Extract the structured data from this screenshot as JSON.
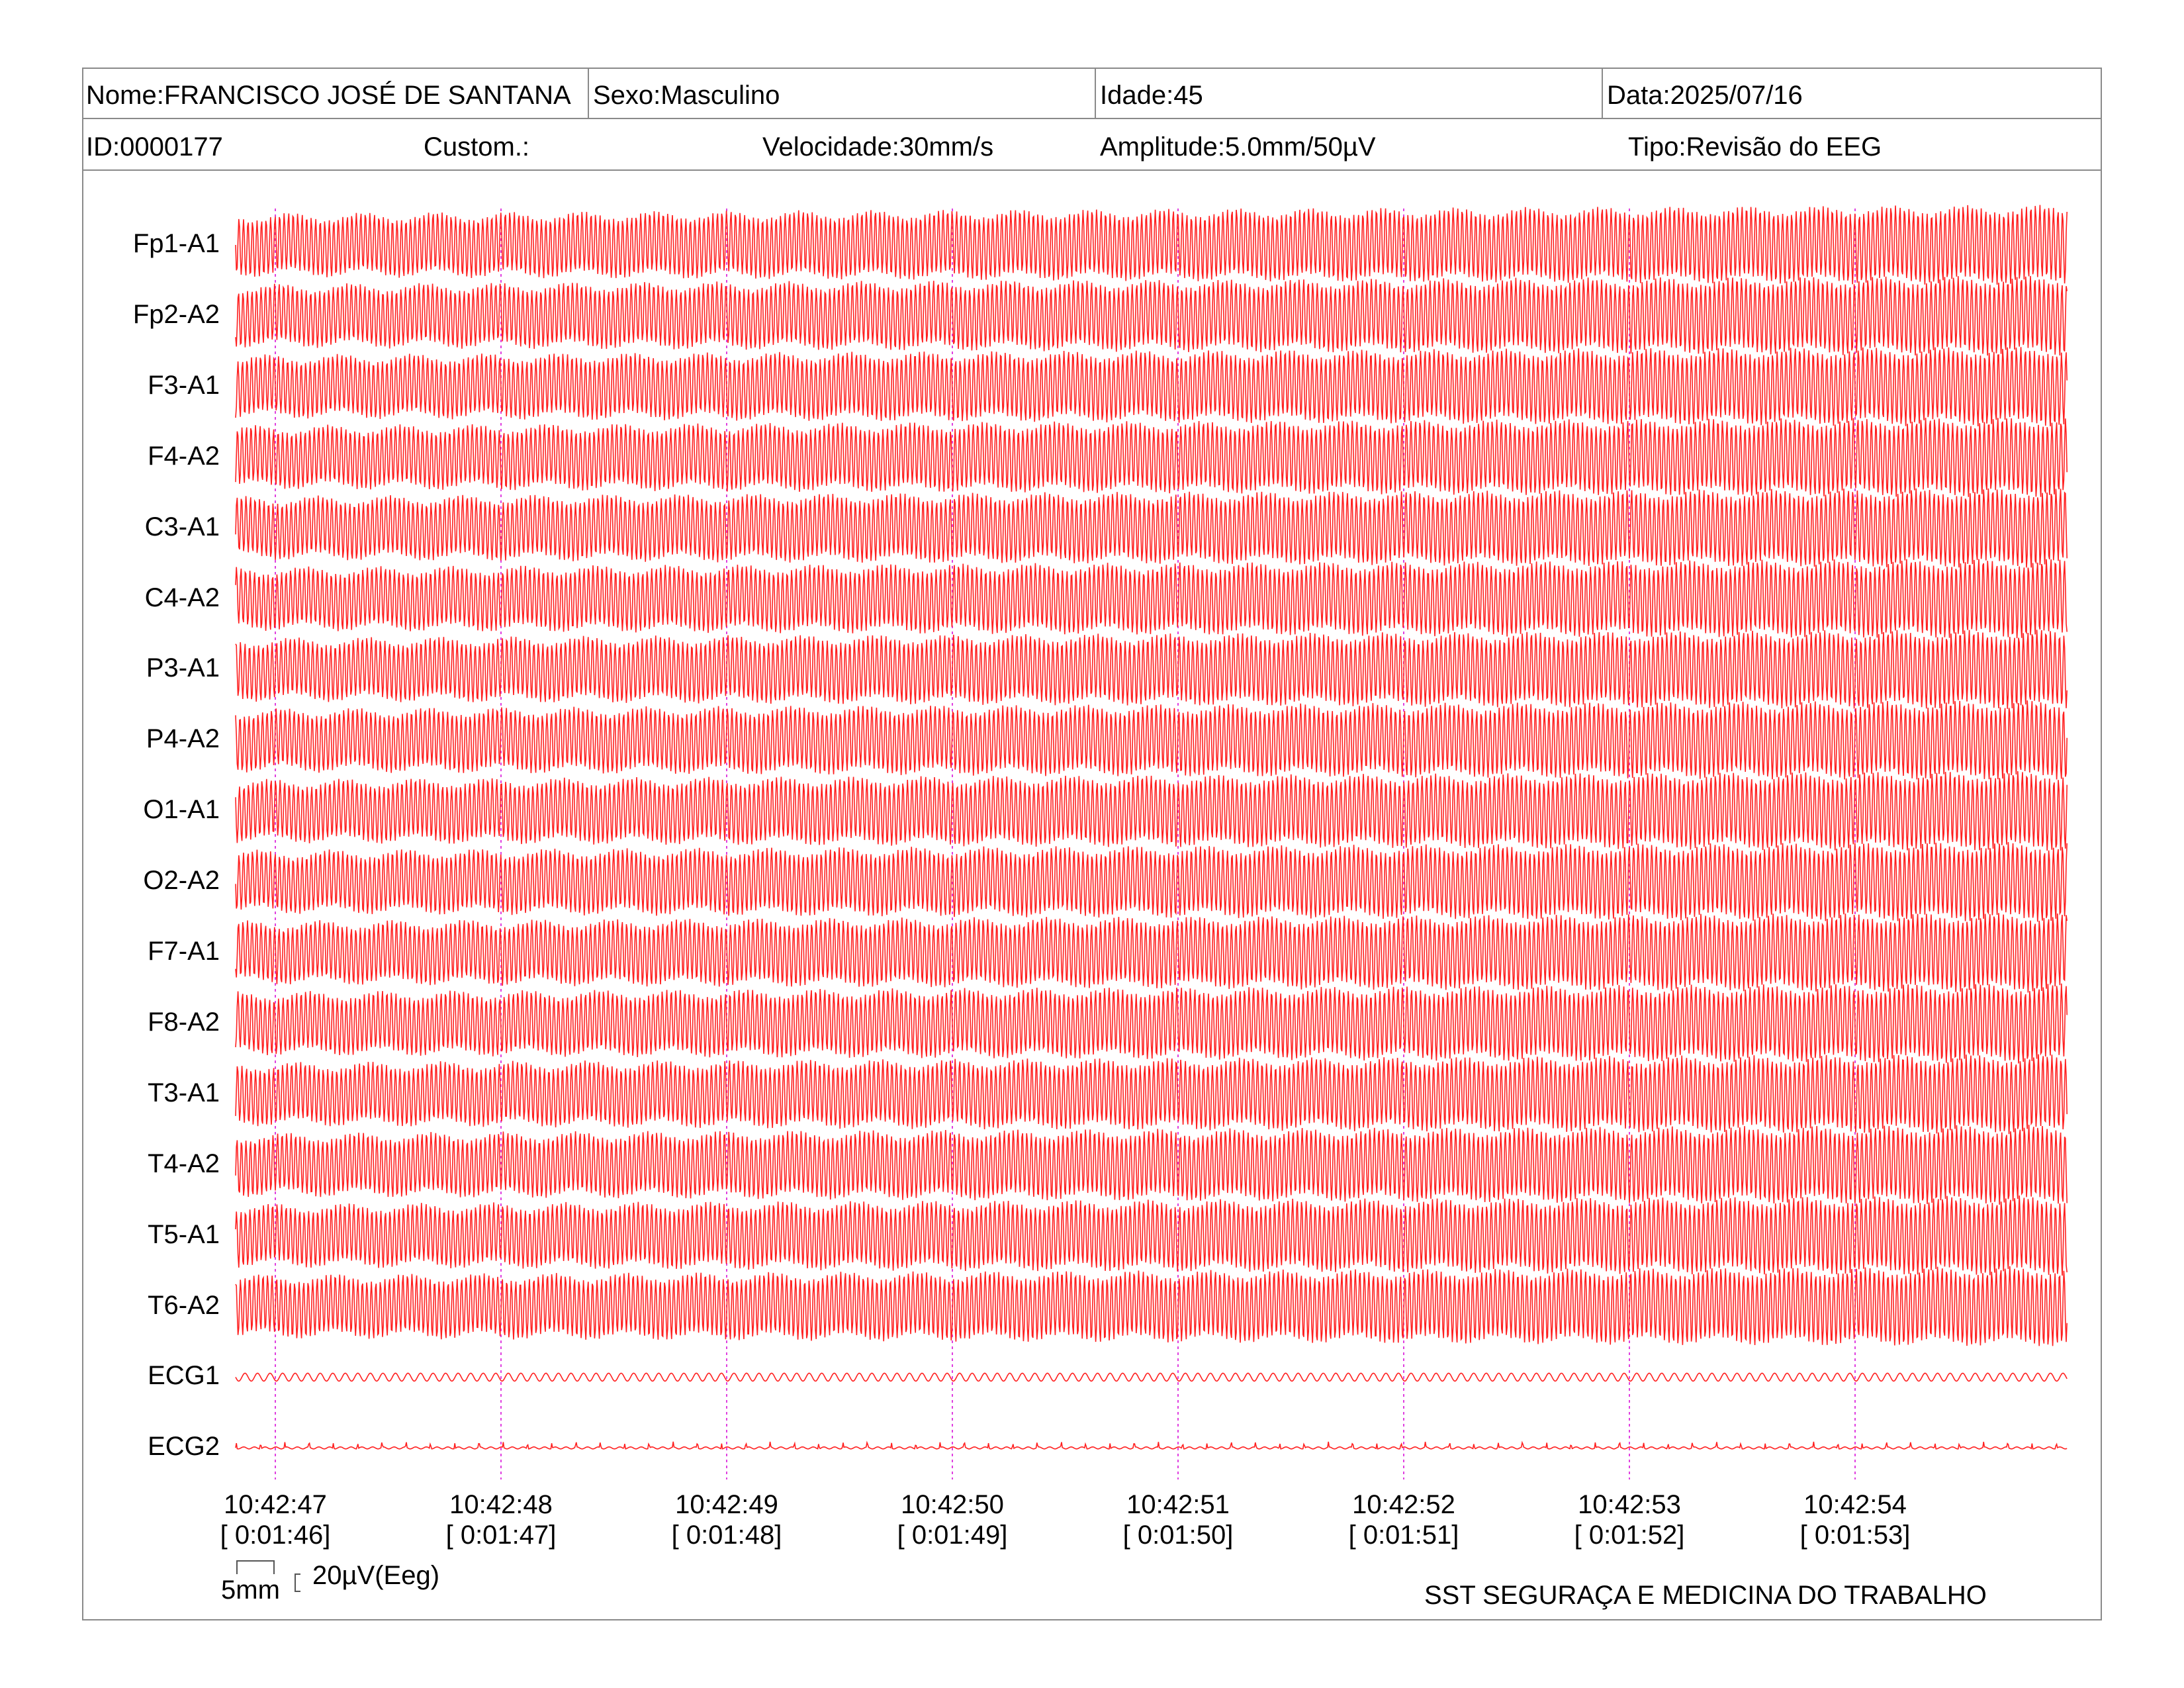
{
  "header": {
    "nome": "Nome:FRANCISCO JOSÉ DE SANTANA",
    "sexo": "Sexo:Masculino",
    "idade": "Idade:45",
    "data": "Data:2025/07/16",
    "id": "ID:0000177",
    "custom": "Custom.:",
    "velocidade": "Velocidade:30mm/s",
    "amplitude": "Amplitude:5.0mm/50µV",
    "tipo": "Tipo:Revisão do EEG"
  },
  "chart_data": {
    "type": "line",
    "title": "",
    "xlabel": "",
    "ylabel": "",
    "trace_color": "#ff2020",
    "marker_color": "#e040e0",
    "channels": [
      "Fp1-A1",
      "Fp2-A2",
      "F3-A1",
      "F4-A2",
      "C3-A1",
      "C4-A2",
      "P3-A1",
      "P4-A2",
      "O1-A1",
      "O2-A2",
      "F7-A1",
      "F8-A2",
      "T3-A1",
      "T4-A2",
      "T5-A1",
      "T6-A2",
      "ECG1",
      "ECG2"
    ],
    "time_marks": [
      {
        "clock": "10:42:47",
        "elapsed": "[ 0:01:46]"
      },
      {
        "clock": "10:42:48",
        "elapsed": "[ 0:01:47]"
      },
      {
        "clock": "10:42:49",
        "elapsed": "[ 0:01:48]"
      },
      {
        "clock": "10:42:50",
        "elapsed": "[ 0:01:49]"
      },
      {
        "clock": "10:42:51",
        "elapsed": "[ 0:01:50]"
      },
      {
        "clock": "10:42:52",
        "elapsed": "[ 0:01:51]"
      },
      {
        "clock": "10:42:53",
        "elapsed": "[ 0:01:52]"
      },
      {
        "clock": "10:42:54",
        "elapsed": "[ 0:01:53]"
      }
    ],
    "eeg_wave_cycles_per_second": 50,
    "ecg_wave_cycles_per_second": 18
  },
  "scale": {
    "time": "5mm",
    "amplitude": "20µV(Eeg)"
  },
  "footer": {
    "company": "SST SEGURAÇA E MEDICINA DO TRABALHO"
  }
}
